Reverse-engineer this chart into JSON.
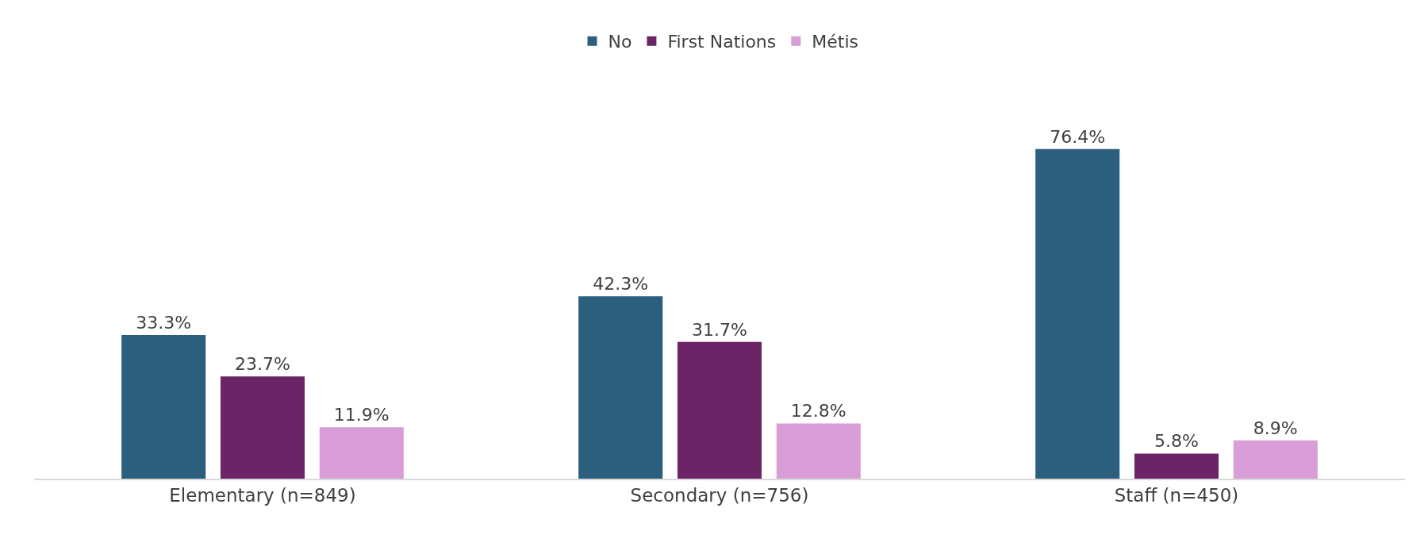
{
  "chart_data": {
    "type": "bar",
    "categories": [
      "Elementary (n=849)",
      "Secondary (n=756)",
      "Staff (n=450)"
    ],
    "series": [
      {
        "name": "No",
        "color": "#2c5f7e",
        "values": [
          33.3,
          42.3,
          76.4
        ],
        "value_labels": [
          "33.3%",
          "42.3%",
          "76.4%"
        ]
      },
      {
        "name": "First Nations",
        "color": "#6b2466",
        "values": [
          23.7,
          31.7,
          5.8
        ],
        "value_labels": [
          "23.7%",
          "31.7%",
          "5.8%"
        ]
      },
      {
        "name": "Métis",
        "color": "#d99dd8",
        "values": [
          11.9,
          12.8,
          8.9
        ],
        "value_labels": [
          "11.9%",
          "12.8%",
          "8.9%"
        ]
      }
    ],
    "legend": "top",
    "tick_labels": "x"
  }
}
